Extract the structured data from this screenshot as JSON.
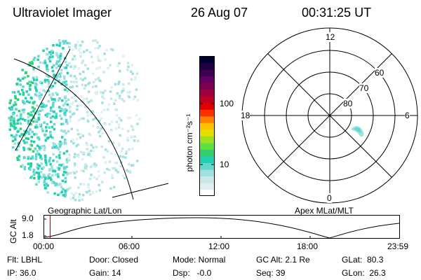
{
  "header": {
    "instrument": "Ultraviolet Imager",
    "date": "26 Aug 07",
    "time": "00:31:25 UT"
  },
  "colorbar": {
    "label": "photon cm⁻²s⁻¹",
    "tick_100": "100",
    "tick_10": "10",
    "scale": "log",
    "colors": [
      "#ffffff",
      "#e0f0f0",
      "#c8e8e8",
      "#a0e0e0",
      "#60d8d0",
      "#20d0b0",
      "#30d070",
      "#60e040",
      "#a0e020",
      "#e0e000",
      "#ffc000",
      "#ff8000",
      "#ff3000",
      "#e00000",
      "#c00020",
      "#a00040",
      "#800050",
      "#600060",
      "#400050",
      "#200040",
      "#000030"
    ]
  },
  "polar": {
    "hour_labels": {
      "top": "12",
      "right": "6",
      "bottom": "0",
      "left": "18"
    },
    "lat_labels": {
      "r60": "60",
      "r70": "70",
      "r80": "80"
    }
  },
  "image": {
    "left_caption": "Geographic Lat/Lon",
    "right_caption": "Apex MLat/MLT",
    "accent": "#20d0b0"
  },
  "orbit": {
    "ylabel": "GC Alt",
    "y_ticks": [
      "9.0",
      "1.8"
    ],
    "x_ticks": [
      "00:00",
      "06:00",
      "12:00",
      "18:00",
      "23:59"
    ],
    "marker_color": "#c00000"
  },
  "footer": {
    "flt": "Flt: LBHL",
    "ip": "IP: 36.0",
    "door": "Door: Closed",
    "gain": "Gain: 14",
    "mode": "Mode: Normal",
    "dsp": "Dsp:   -0.0",
    "gcalt": "GC Alt: 2.1 Re",
    "seq": "Seq: 39",
    "glat": "GLat:  80.3",
    "glon": "GLon:  26.3"
  }
}
